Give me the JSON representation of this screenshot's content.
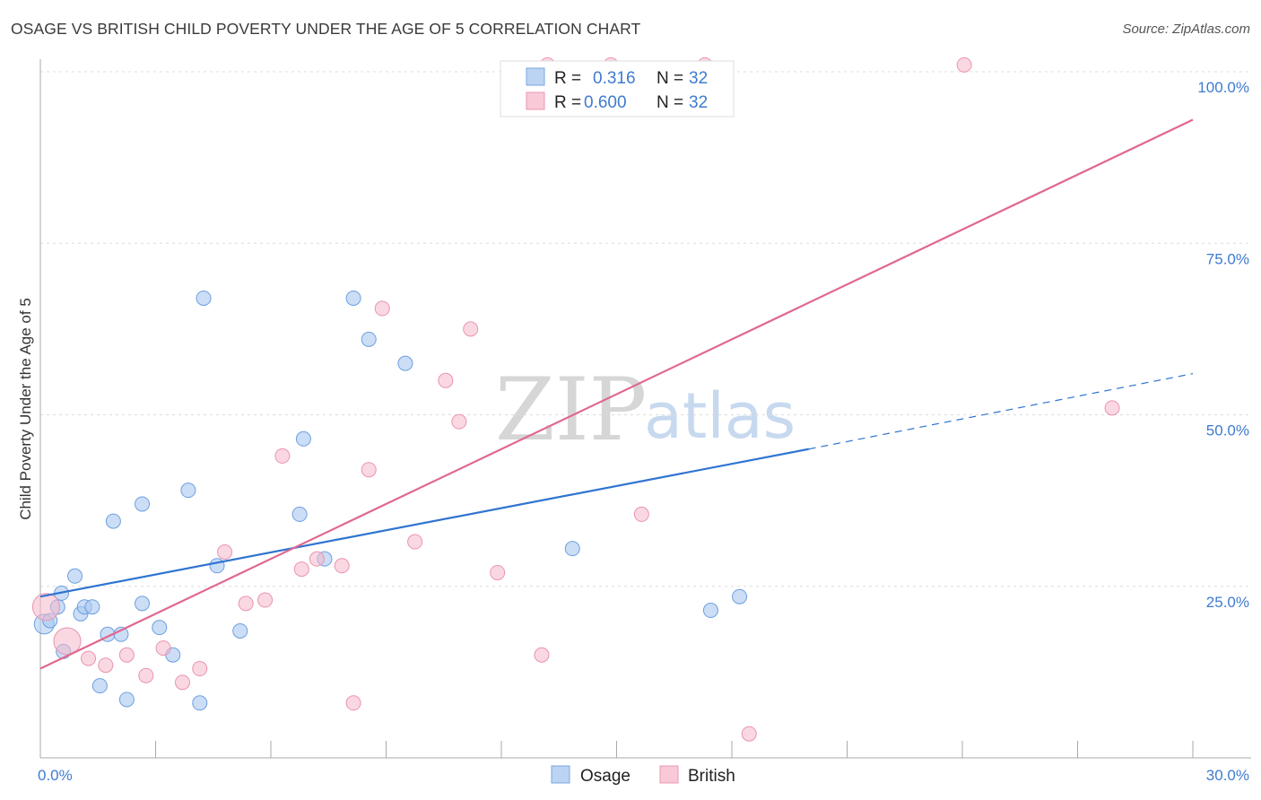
{
  "header": {
    "title": "OSAGE VS BRITISH CHILD POVERTY UNDER THE AGE OF 5 CORRELATION CHART",
    "source": "Source: ZipAtlas.com"
  },
  "watermark": {
    "zip": "ZIP",
    "atlas": "atlas"
  },
  "legend": {
    "rows": [
      {
        "series": "Osage",
        "r_label": "R =",
        "r_value": "0.316",
        "n_label": "N =",
        "n_value": "32"
      },
      {
        "series": "British",
        "r_label": "R =",
        "r_value": "0.600",
        "n_label": "N =",
        "n_value": "32"
      }
    ]
  },
  "chart_data": {
    "type": "scatter",
    "title": "OSAGE VS BRITISH CHILD POVERTY UNDER THE AGE OF 5 CORRELATION CHART",
    "xlabel": "",
    "ylabel": "Child Poverty Under the Age of 5",
    "xlim": [
      0,
      30
    ],
    "ylim": [
      0,
      100
    ],
    "x_tick_labels": [
      {
        "value": 0,
        "label": "0.0%"
      },
      {
        "value": 30,
        "label": "30.0%"
      }
    ],
    "y_tick_labels": [
      {
        "value": 25,
        "label": "25.0%"
      },
      {
        "value": 50,
        "label": "50.0%"
      },
      {
        "value": 75,
        "label": "75.0%"
      },
      {
        "value": 100,
        "label": "100.0%"
      }
    ],
    "grid": true,
    "colors": {
      "Osage": "#a8c8f0",
      "Osage_line": "#2f74d0",
      "British": "#f6b8cb",
      "British_line": "#e0688f"
    },
    "series": [
      {
        "name": "Osage",
        "points": [
          [
            0.1,
            19.5
          ],
          [
            0.25,
            20
          ],
          [
            0.45,
            22
          ],
          [
            0.55,
            24
          ],
          [
            0.9,
            26.5
          ],
          [
            0.6,
            15.5
          ],
          [
            1.05,
            21
          ],
          [
            1.15,
            22
          ],
          [
            1.35,
            22
          ],
          [
            1.75,
            18
          ],
          [
            2.1,
            18
          ],
          [
            1.55,
            10.5
          ],
          [
            2.25,
            8.5
          ],
          [
            2.65,
            37
          ],
          [
            1.9,
            34.5
          ],
          [
            2.65,
            22.5
          ],
          [
            3.1,
            19
          ],
          [
            3.45,
            15
          ],
          [
            3.85,
            39
          ],
          [
            4.15,
            8
          ],
          [
            4.25,
            67
          ],
          [
            4.6,
            28
          ],
          [
            5.2,
            18.5
          ],
          [
            6.85,
            46.5
          ],
          [
            6.75,
            35.5
          ],
          [
            7.4,
            29
          ],
          [
            8.15,
            67
          ],
          [
            8.55,
            61
          ],
          [
            9.5,
            57.5
          ],
          [
            13.85,
            30.5
          ],
          [
            17.45,
            21.5
          ],
          [
            18.2,
            23.5
          ]
        ],
        "regression": {
          "x0": 0,
          "y0": 23.5,
          "x1": 20,
          "y1": 45,
          "dashed_to_x": 30,
          "dashed_to_y": 56
        }
      },
      {
        "name": "British",
        "points": [
          [
            0.15,
            22
          ],
          [
            0.7,
            17
          ],
          [
            1.25,
            14.5
          ],
          [
            1.7,
            13.5
          ],
          [
            2.25,
            15
          ],
          [
            2.75,
            12
          ],
          [
            3.2,
            16
          ],
          [
            3.7,
            11
          ],
          [
            4.15,
            13
          ],
          [
            4.8,
            30
          ],
          [
            5.35,
            22.5
          ],
          [
            5.85,
            23
          ],
          [
            6.3,
            44
          ],
          [
            6.8,
            27.5
          ],
          [
            7.2,
            29
          ],
          [
            7.85,
            28
          ],
          [
            8.15,
            8
          ],
          [
            8.55,
            42
          ],
          [
            8.9,
            65.5
          ],
          [
            9.75,
            31.5
          ],
          [
            10.55,
            55
          ],
          [
            10.9,
            49
          ],
          [
            11.2,
            62.5
          ],
          [
            11.9,
            27
          ],
          [
            13.2,
            101
          ],
          [
            13.05,
            15
          ],
          [
            14.85,
            101
          ],
          [
            15.65,
            35.5
          ],
          [
            17.3,
            101
          ],
          [
            18.45,
            3.5
          ],
          [
            24.05,
            101
          ],
          [
            27.9,
            51
          ]
        ],
        "regression": {
          "x0": 0,
          "y0": 13,
          "x1": 30,
          "y1": 93
        }
      }
    ]
  },
  "bottom_legend": [
    {
      "label": "Osage"
    },
    {
      "label": "British"
    }
  ]
}
